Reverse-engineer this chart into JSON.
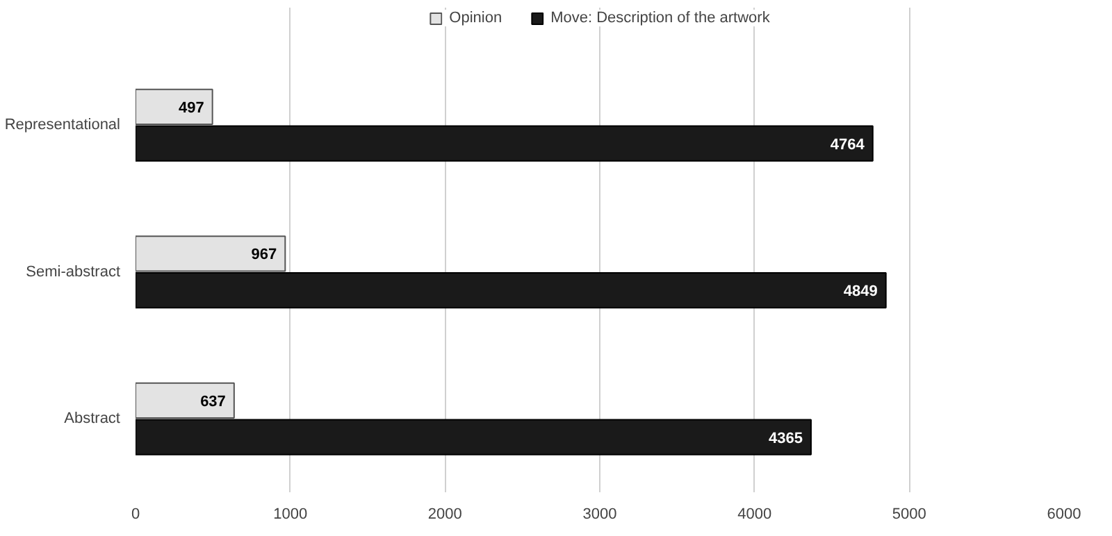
{
  "chart_data": {
    "type": "bar",
    "orientation": "horizontal",
    "categories": [
      "Representational",
      "Semi-abstract",
      "Abstract"
    ],
    "series": [
      {
        "name": "Opinion",
        "color": "#e3e3e3",
        "values": [
          497,
          967,
          637
        ]
      },
      {
        "name": "Move: Description of the artwork",
        "color": "#1a1a1a",
        "values": [
          4764,
          4849,
          4365
        ]
      }
    ],
    "xlim": [
      0,
      6000
    ],
    "xticks": [
      0,
      1000,
      2000,
      3000,
      4000,
      5000,
      6000
    ],
    "grid": "x",
    "legend": "top",
    "data_labels": true
  }
}
